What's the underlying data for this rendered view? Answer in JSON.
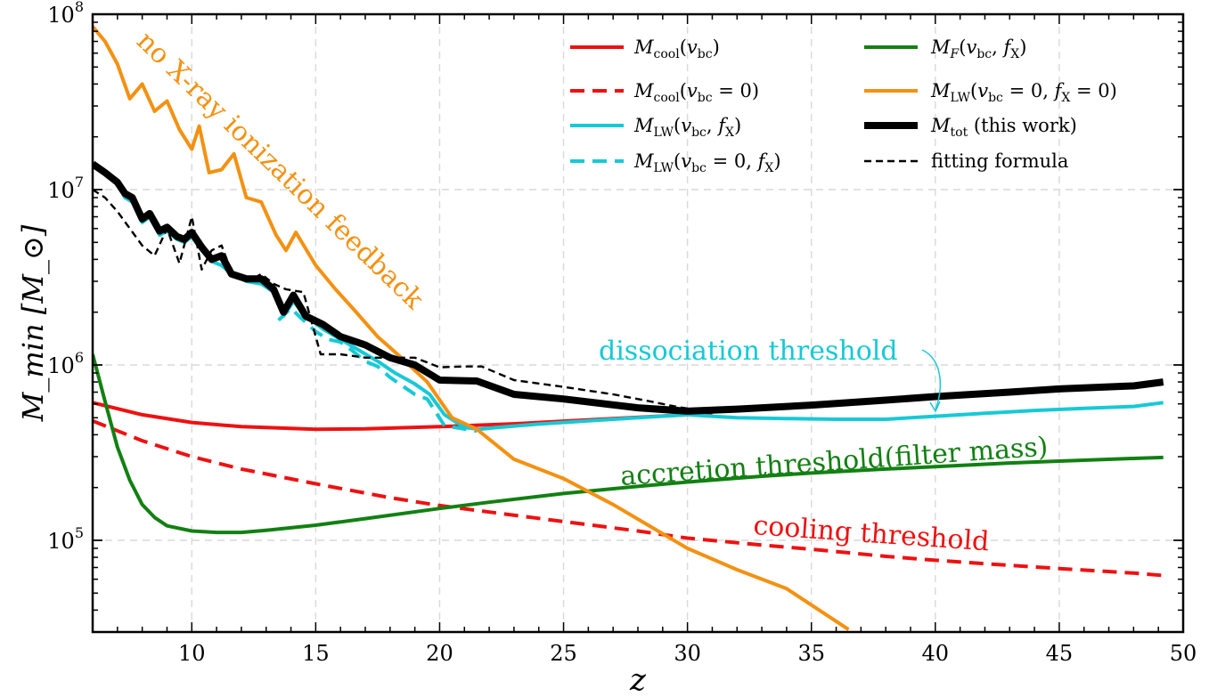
{
  "chart_data": {
    "type": "line",
    "xlabel": "z",
    "ylabel": "M_min [M_⊙]",
    "xlim": [
      6,
      50
    ],
    "ylim": [
      30000,
      100000000
    ],
    "yscale": "log",
    "grid": true,
    "legend_position": "top-right",
    "x_ticks": [
      10,
      15,
      20,
      25,
      30,
      35,
      40,
      45,
      50
    ],
    "x_tick_labels": [
      "10",
      "15",
      "20",
      "25",
      "30",
      "35",
      "40",
      "45",
      "50"
    ],
    "y_ticks": [
      100000,
      1000000,
      10000000,
      100000000
    ],
    "y_tick_labels": [
      "10^5",
      "10^6",
      "10^7",
      "10^8"
    ],
    "series": [
      {
        "name": "M_cool(v_bc)",
        "color": "#ee1111",
        "style": "solid",
        "points": [
          [
            6,
            610000
          ],
          [
            8,
            520000
          ],
          [
            10,
            470000
          ],
          [
            12,
            445000
          ],
          [
            15,
            430000
          ],
          [
            17,
            432000
          ],
          [
            20,
            445000
          ],
          [
            23,
            462000
          ],
          [
            25,
            478000
          ],
          [
            27,
            495000
          ],
          [
            30,
            520000
          ],
          [
            31,
            527000
          ]
        ]
      },
      {
        "name": "M_cool(v_bc = 0)",
        "color": "#ee1111",
        "style": "dashed",
        "points": [
          [
            6,
            480000
          ],
          [
            8,
            370000
          ],
          [
            10,
            300000
          ],
          [
            12,
            255000
          ],
          [
            15,
            210000
          ],
          [
            18,
            175000
          ],
          [
            20,
            158000
          ],
          [
            22,
            145000
          ],
          [
            25,
            128000
          ],
          [
            28,
            113000
          ],
          [
            30,
            103000
          ],
          [
            33,
            94000
          ],
          [
            35,
            89000
          ],
          [
            38,
            81000
          ],
          [
            40,
            77000
          ],
          [
            43,
            72000
          ],
          [
            45,
            69000
          ],
          [
            48,
            65000
          ],
          [
            49.2,
            63000
          ]
        ]
      },
      {
        "name": "M_LW(v_bc, f_X)",
        "color": "#17c9d6",
        "style": "solid",
        "points": [
          [
            6,
            14000000
          ],
          [
            6.5,
            12500000
          ],
          [
            7,
            11000000
          ],
          [
            7.3,
            9000000
          ],
          [
            7.6,
            8500000
          ],
          [
            8,
            6500000
          ],
          [
            8.3,
            7000000
          ],
          [
            8.7,
            5500000
          ],
          [
            9,
            5800000
          ],
          [
            9.4,
            5200000
          ],
          [
            9.7,
            5000000
          ],
          [
            10,
            5400000
          ],
          [
            10.4,
            4500000
          ],
          [
            10.8,
            3900000
          ],
          [
            11.2,
            3700000
          ],
          [
            11.6,
            3300000
          ],
          [
            12.2,
            3000000
          ],
          [
            12.8,
            2900000
          ],
          [
            13.3,
            2600000
          ],
          [
            13.7,
            1900000
          ],
          [
            14.1,
            2300000
          ],
          [
            14.6,
            1900000
          ],
          [
            15.3,
            1600000
          ],
          [
            16,
            1400000
          ],
          [
            16.8,
            1200000
          ],
          [
            17.5,
            1050000
          ],
          [
            18.2,
            900000
          ],
          [
            19,
            780000
          ],
          [
            19.6,
            680000
          ],
          [
            20.2,
            520000
          ],
          [
            21,
            440000
          ],
          [
            21.6,
            430000
          ],
          [
            22.3,
            440000
          ],
          [
            24,
            460000
          ],
          [
            26,
            480000
          ],
          [
            28,
            500000
          ],
          [
            30,
            520000
          ],
          [
            31,
            510000
          ],
          [
            32,
            500000
          ],
          [
            34,
            495000
          ],
          [
            36,
            490000
          ],
          [
            38,
            490000
          ],
          [
            40,
            510000
          ],
          [
            42,
            530000
          ],
          [
            44,
            550000
          ],
          [
            46,
            565000
          ],
          [
            48,
            580000
          ],
          [
            49.2,
            610000
          ]
        ]
      },
      {
        "name": "M_LW(v_bc = 0, f_X)",
        "color": "#17c9d6",
        "style": "dashed",
        "points": [
          [
            13.5,
            1800000
          ],
          [
            14,
            2100000
          ],
          [
            14.5,
            1800000
          ],
          [
            15,
            1550000
          ],
          [
            15.5,
            1400000
          ],
          [
            16,
            1350000
          ],
          [
            16.5,
            1200000
          ],
          [
            17,
            1050000
          ],
          [
            17.5,
            980000
          ],
          [
            18,
            850000
          ],
          [
            18.5,
            760000
          ],
          [
            19,
            680000
          ],
          [
            19.5,
            640000
          ],
          [
            20.2,
            450000
          ],
          [
            21.5,
            420000
          ]
        ]
      },
      {
        "name": "M_F(v_bc, f_X)",
        "color": "#128012",
        "style": "solid",
        "points": [
          [
            6,
            1150000
          ],
          [
            6.5,
            620000
          ],
          [
            7,
            340000
          ],
          [
            7.5,
            220000
          ],
          [
            8,
            160000
          ],
          [
            8.5,
            135000
          ],
          [
            9,
            121000
          ],
          [
            10,
            113000
          ],
          [
            11,
            111000
          ],
          [
            12,
            111000
          ],
          [
            13,
            114000
          ],
          [
            15,
            122000
          ],
          [
            17,
            133000
          ],
          [
            20,
            152000
          ],
          [
            22,
            165000
          ],
          [
            25,
            185000
          ],
          [
            28,
            203000
          ],
          [
            30,
            215000
          ],
          [
            33,
            232000
          ],
          [
            35,
            242000
          ],
          [
            38,
            255000
          ],
          [
            40,
            263000
          ],
          [
            43,
            276000
          ],
          [
            45,
            283000
          ],
          [
            48,
            293000
          ],
          [
            49.2,
            297000
          ]
        ]
      },
      {
        "name": "M_LW(v_bc = 0, f_X = 0)",
        "color": "#f49111",
        "style": "solid",
        "points": [
          [
            6,
            85000000
          ],
          [
            6.5,
            70000000
          ],
          [
            7,
            52000000
          ],
          [
            7.5,
            33000000
          ],
          [
            8,
            40000000
          ],
          [
            8.5,
            28000000
          ],
          [
            9,
            32000000
          ],
          [
            9.5,
            22000000
          ],
          [
            10,
            17000000
          ],
          [
            10.3,
            23000000
          ],
          [
            10.7,
            12500000
          ],
          [
            11.2,
            13000000
          ],
          [
            11.7,
            16000000
          ],
          [
            12.2,
            9000000
          ],
          [
            12.8,
            8500000
          ],
          [
            13.4,
            5500000
          ],
          [
            13.8,
            4500000
          ],
          [
            14.2,
            5700000
          ],
          [
            15,
            3700000
          ],
          [
            15.8,
            2700000
          ],
          [
            16.5,
            2100000
          ],
          [
            17.5,
            1450000
          ],
          [
            18.3,
            1150000
          ],
          [
            19.5,
            800000
          ],
          [
            20.5,
            500000
          ],
          [
            21.5,
            430000
          ],
          [
            23,
            290000
          ],
          [
            25,
            225000
          ],
          [
            27,
            160000
          ],
          [
            28.5,
            120000
          ],
          [
            30,
            90000
          ],
          [
            32,
            68000
          ],
          [
            34,
            53000
          ],
          [
            36.5,
            31000
          ]
        ]
      },
      {
        "name": "M_tot (this work)",
        "color": "#000000",
        "style": "solid-thick",
        "points": [
          [
            6,
            14000000
          ],
          [
            6.5,
            12500000
          ],
          [
            7,
            11000000
          ],
          [
            7.3,
            9500000
          ],
          [
            7.6,
            9000000
          ],
          [
            8,
            6800000
          ],
          [
            8.3,
            7300000
          ],
          [
            8.7,
            5800000
          ],
          [
            9,
            6100000
          ],
          [
            9.4,
            5400000
          ],
          [
            9.7,
            5200000
          ],
          [
            10,
            5700000
          ],
          [
            10.4,
            4700000
          ],
          [
            10.8,
            4000000
          ],
          [
            11.2,
            4200000
          ],
          [
            11.6,
            3300000
          ],
          [
            12.2,
            3100000
          ],
          [
            12.8,
            3100000
          ],
          [
            13.3,
            2700000
          ],
          [
            13.7,
            2000000
          ],
          [
            14.1,
            2500000
          ],
          [
            14.6,
            1900000
          ],
          [
            15.3,
            1700000
          ],
          [
            16,
            1450000
          ],
          [
            17,
            1300000
          ],
          [
            18,
            1100000
          ],
          [
            19,
            1000000
          ],
          [
            20,
            820000
          ],
          [
            21.5,
            810000
          ],
          [
            23,
            680000
          ],
          [
            25,
            640000
          ],
          [
            28,
            570000
          ],
          [
            30,
            545000
          ],
          [
            32,
            560000
          ],
          [
            35,
            590000
          ],
          [
            38,
            630000
          ],
          [
            40,
            660000
          ],
          [
            43,
            700000
          ],
          [
            45,
            730000
          ],
          [
            48,
            760000
          ],
          [
            49.2,
            800000
          ]
        ]
      },
      {
        "name": "fitting formula",
        "color": "#000000",
        "style": "dashed-thin",
        "points": [
          [
            6,
            10000000
          ],
          [
            6.5,
            9000000
          ],
          [
            7,
            7500000
          ],
          [
            7.5,
            6000000
          ],
          [
            8,
            4800000
          ],
          [
            8.5,
            4200000
          ],
          [
            9,
            6000000
          ],
          [
            9.5,
            3800000
          ],
          [
            10,
            7000000
          ],
          [
            10.4,
            3500000
          ],
          [
            10.8,
            4500000
          ],
          [
            11.2,
            4800000
          ],
          [
            11.6,
            3400000
          ],
          [
            12.3,
            3000000
          ],
          [
            12.8,
            3300000
          ],
          [
            13.3,
            2900000
          ],
          [
            13.8,
            2700000
          ],
          [
            14.5,
            2600000
          ],
          [
            15.2,
            1150000
          ],
          [
            16,
            1150000
          ],
          [
            17,
            1100000
          ],
          [
            18,
            1100000
          ],
          [
            19,
            1100000
          ],
          [
            20,
            970000
          ],
          [
            21,
            980000
          ],
          [
            21.7,
            980000
          ],
          [
            23,
            820000
          ],
          [
            25,
            750000
          ],
          [
            27,
            680000
          ],
          [
            28.5,
            620000
          ],
          [
            29.5,
            580000
          ],
          [
            30.5,
            550000
          ]
        ]
      }
    ],
    "annotations": [
      {
        "text": "no X-ray ionization feedback",
        "color": "#f49111"
      },
      {
        "text": "dissociation threshold",
        "color": "#17c9d6"
      },
      {
        "text": "accretion threshold(filter mass)",
        "color": "#128012"
      },
      {
        "text": "cooling threshold",
        "color": "#ee1111"
      }
    ]
  }
}
